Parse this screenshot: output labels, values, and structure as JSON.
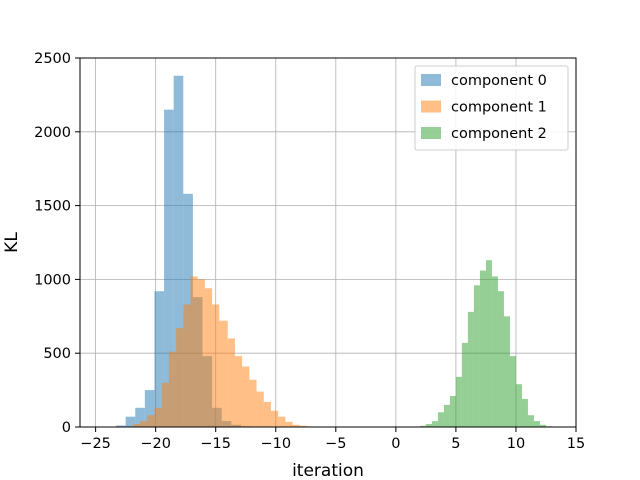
{
  "chart_data": {
    "type": "histogram",
    "xlabel": "iteration",
    "ylabel": "KL",
    "xlim": [
      -26.3,
      15.0
    ],
    "ylim": [
      0,
      2500
    ],
    "grid": true,
    "legend_placement": "top-right",
    "xticks": [
      -25,
      -20,
      -15,
      -10,
      -5,
      0,
      5,
      10,
      15
    ],
    "yticks": [
      0,
      500,
      1000,
      1500,
      2000,
      2500
    ],
    "series": [
      {
        "name": "component 0",
        "color": "#1f77b4",
        "opacity": 0.5,
        "bin_edges": [
          -23.3,
          -22.5,
          -21.7,
          -20.9,
          -20.1,
          -19.3,
          -18.5,
          -17.7,
          -16.9,
          -16.1,
          -15.3,
          -14.5,
          -13.7,
          -12.9,
          -12.1,
          -11.3
        ],
        "counts": [
          10,
          70,
          130,
          250,
          920,
          2150,
          2380,
          1580,
          880,
          480,
          130,
          40,
          15,
          5,
          3
        ]
      },
      {
        "name": "component 1",
        "color": "#ff7f0e",
        "opacity": 0.5,
        "bin_edges": [
          -21.9,
          -21.3,
          -20.7,
          -20.1,
          -19.5,
          -18.9,
          -18.3,
          -17.7,
          -17.1,
          -16.5,
          -15.9,
          -15.3,
          -14.7,
          -14.0,
          -13.4,
          -12.8,
          -12.2,
          -11.6,
          -11.0,
          -10.4,
          -9.8,
          -9.2,
          -8.6,
          -8.0,
          -7.4,
          -6.8,
          -6.2
        ],
        "counts": [
          20,
          40,
          80,
          130,
          300,
          510,
          670,
          830,
          1020,
          1000,
          940,
          830,
          720,
          600,
          480,
          410,
          320,
          240,
          170,
          110,
          70,
          35,
          15,
          8,
          4,
          2
        ]
      },
      {
        "name": "component 2",
        "color": "#2ca02c",
        "opacity": 0.5,
        "bin_edges": [
          1.5,
          2.0,
          2.5,
          3.0,
          3.5,
          4.0,
          4.5,
          5.0,
          5.5,
          6.0,
          6.5,
          7.0,
          7.5,
          8.0,
          8.5,
          9.0,
          9.5,
          10.0,
          10.5,
          11.0,
          11.5,
          12.0,
          12.5,
          13.0
        ],
        "counts": [
          3,
          8,
          20,
          40,
          100,
          150,
          210,
          340,
          570,
          780,
          960,
          1060,
          1130,
          1020,
          920,
          750,
          480,
          290,
          190,
          80,
          40,
          15,
          5
        ]
      }
    ]
  }
}
